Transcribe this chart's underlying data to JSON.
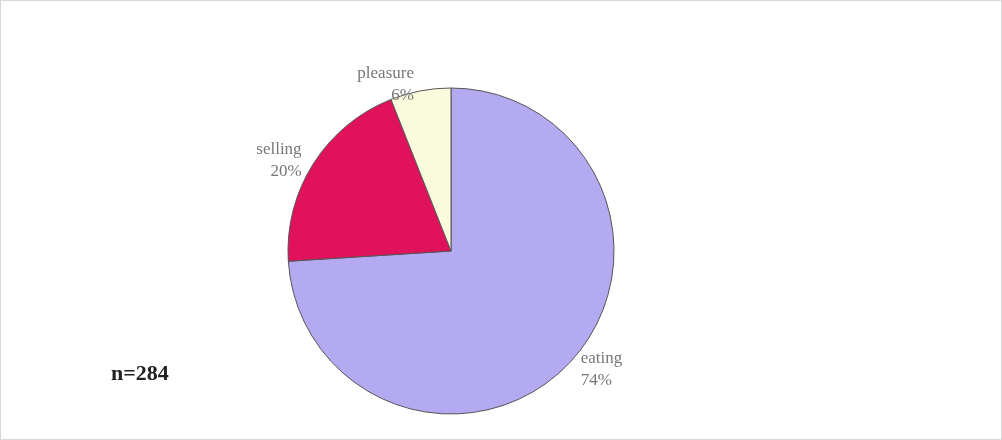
{
  "chart_data": {
    "type": "pie",
    "categories": [
      "eating",
      "selling",
      "pleasure"
    ],
    "values": [
      74,
      20,
      6
    ],
    "value_labels": [
      "74%",
      "20%",
      "6%"
    ],
    "colors": [
      "#b3aaf2",
      "#e0125c",
      "#fafadc"
    ],
    "annotations": [
      "n=284"
    ],
    "legend": false
  }
}
